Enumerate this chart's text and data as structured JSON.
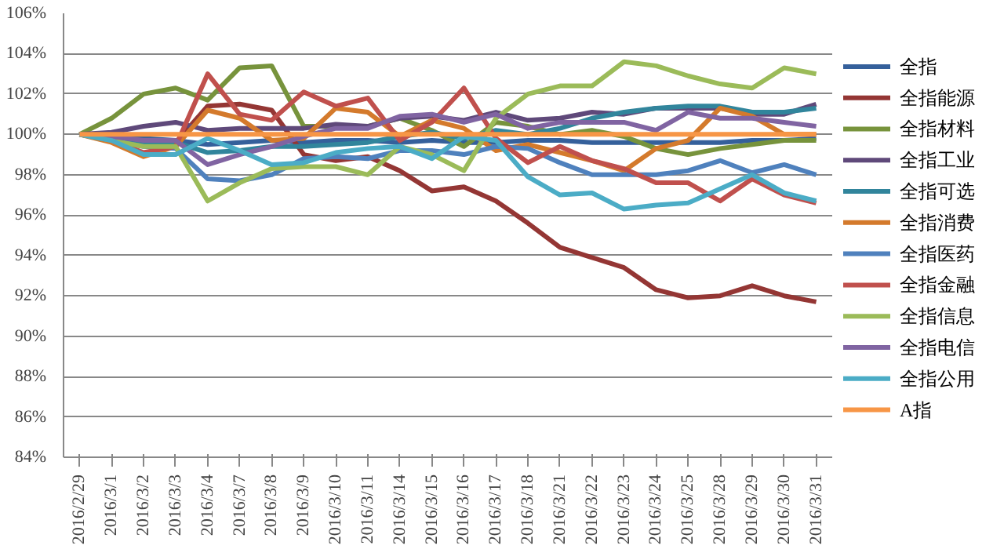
{
  "chart_data": {
    "type": "line",
    "categories": [
      "2016/2/29",
      "2016/3/1",
      "2016/3/2",
      "2016/3/3",
      "2016/3/4",
      "2016/3/7",
      "2016/3/8",
      "2016/3/9",
      "2016/3/10",
      "2016/3/11",
      "2016/3/14",
      "2016/3/15",
      "2016/3/16",
      "2016/3/17",
      "2016/3/18",
      "2016/3/21",
      "2016/3/22",
      "2016/3/23",
      "2016/3/24",
      "2016/3/25",
      "2016/3/28",
      "2016/3/29",
      "2016/3/30",
      "2016/3/31"
    ],
    "ylim": [
      84,
      106
    ],
    "yticks": [
      {
        "value": 84,
        "label": "84%"
      },
      {
        "value": 86,
        "label": "86%"
      },
      {
        "value": 88,
        "label": "88%"
      },
      {
        "value": 90,
        "label": "90%"
      },
      {
        "value": 92,
        "label": "92%"
      },
      {
        "value": 94,
        "label": "94%"
      },
      {
        "value": 96,
        "label": "96%"
      },
      {
        "value": 98,
        "label": "98%"
      },
      {
        "value": 100,
        "label": "100%"
      },
      {
        "value": 102,
        "label": "102%"
      },
      {
        "value": 104,
        "label": "104%"
      },
      {
        "value": 106,
        "label": "106%"
      }
    ],
    "grid": "y",
    "legend": "right",
    "marker": "none",
    "line_style": "solid",
    "series": [
      {
        "name": "全指",
        "color": "#35609b",
        "values": [
          100,
          99.9,
          99.8,
          99.7,
          99.5,
          99.6,
          99.7,
          99.6,
          99.7,
          99.7,
          99.6,
          99.7,
          99.6,
          99.6,
          99.7,
          99.7,
          99.6,
          99.6,
          99.6,
          99.6,
          99.6,
          99.7,
          99.7,
          99.8
        ]
      },
      {
        "name": "全指能源",
        "color": "#943634",
        "values": [
          100,
          99.9,
          99.6,
          99.6,
          101.4,
          101.5,
          101.2,
          99.0,
          98.7,
          98.9,
          98.2,
          97.2,
          97.4,
          96.7,
          95.6,
          94.4,
          93.9,
          93.4,
          92.3,
          91.9,
          92.0,
          92.5,
          92.0,
          91.7
        ]
      },
      {
        "name": "全指材料",
        "color": "#77933c",
        "values": [
          100,
          100.8,
          102.0,
          102.3,
          101.7,
          103.3,
          103.4,
          100.4,
          100.4,
          100.4,
          100.8,
          100.2,
          99.4,
          100.6,
          100.4,
          100.0,
          100.2,
          99.9,
          99.3,
          99.0,
          99.3,
          99.5,
          99.7,
          99.7
        ]
      },
      {
        "name": "全指工业",
        "color": "#5f497a",
        "values": [
          100,
          100.1,
          100.4,
          100.6,
          100.2,
          100.3,
          100.3,
          100.3,
          100.5,
          100.4,
          100.8,
          100.9,
          100.7,
          101.1,
          100.7,
          100.8,
          101.1,
          101.0,
          101.3,
          101.3,
          101.3,
          101.0,
          101.0,
          101.5
        ]
      },
      {
        "name": "全指可选",
        "color": "#31859c",
        "values": [
          100,
          99.8,
          99.6,
          99.6,
          99.1,
          99.2,
          99.4,
          99.4,
          99.5,
          99.6,
          99.9,
          100.1,
          99.8,
          100.2,
          100.0,
          100.3,
          100.8,
          101.1,
          101.3,
          101.4,
          101.4,
          101.1,
          101.1,
          101.3
        ]
      },
      {
        "name": "全指消费",
        "color": "#d47a2c",
        "values": [
          100,
          99.6,
          98.9,
          99.4,
          101.2,
          100.8,
          99.7,
          99.8,
          101.3,
          101.1,
          99.9,
          100.7,
          100.3,
          99.2,
          99.5,
          99.1,
          98.7,
          98.2,
          99.3,
          99.7,
          101.3,
          100.9,
          100.0,
          100.0
        ]
      },
      {
        "name": "全指医药",
        "color": "#4f81bd",
        "values": [
          100,
          99.7,
          99.4,
          99.3,
          97.8,
          97.7,
          98.0,
          98.8,
          98.9,
          98.8,
          99.2,
          99.2,
          99.0,
          99.4,
          99.3,
          98.6,
          98.0,
          98.0,
          98.0,
          98.2,
          98.7,
          98.1,
          98.5,
          98.0
        ]
      },
      {
        "name": "全指金融",
        "color": "#c0504d",
        "values": [
          100,
          99.7,
          99.1,
          99.4,
          103.0,
          101.0,
          100.7,
          102.1,
          101.4,
          101.8,
          99.7,
          100.6,
          102.3,
          99.8,
          98.6,
          99.4,
          98.7,
          98.3,
          97.6,
          97.6,
          96.7,
          97.8,
          97.0,
          96.6
        ]
      },
      {
        "name": "全指信息",
        "color": "#9bbb59",
        "values": [
          100,
          99.7,
          99.4,
          99.4,
          96.7,
          97.6,
          98.3,
          98.4,
          98.4,
          98.0,
          99.4,
          99.0,
          98.2,
          100.8,
          102.0,
          102.4,
          102.4,
          103.6,
          103.4,
          102.9,
          102.5,
          102.3,
          103.3,
          103.0
        ]
      },
      {
        "name": "全指电信",
        "color": "#8064a2",
        "values": [
          100,
          99.9,
          99.7,
          99.7,
          98.5,
          99.0,
          99.4,
          99.9,
          100.3,
          100.3,
          100.9,
          101.0,
          100.6,
          101.0,
          100.3,
          100.6,
          100.6,
          100.6,
          100.2,
          101.1,
          100.8,
          100.8,
          100.6,
          100.4
        ]
      },
      {
        "name": "全指公用",
        "color": "#4bacc6",
        "values": [
          100,
          99.7,
          99.0,
          99.0,
          99.8,
          99.2,
          98.5,
          98.6,
          99.1,
          99.3,
          99.4,
          98.8,
          99.9,
          99.7,
          97.9,
          97.0,
          97.1,
          96.3,
          96.5,
          96.6,
          97.3,
          98.0,
          97.1,
          96.7
        ]
      },
      {
        "name": "A指",
        "color": "#f79646",
        "values": [
          100,
          100,
          100,
          100,
          100,
          100,
          100,
          100,
          100,
          100,
          100,
          100,
          100,
          100,
          100,
          100,
          100,
          100,
          100,
          100,
          100,
          100,
          100,
          100
        ]
      }
    ]
  }
}
